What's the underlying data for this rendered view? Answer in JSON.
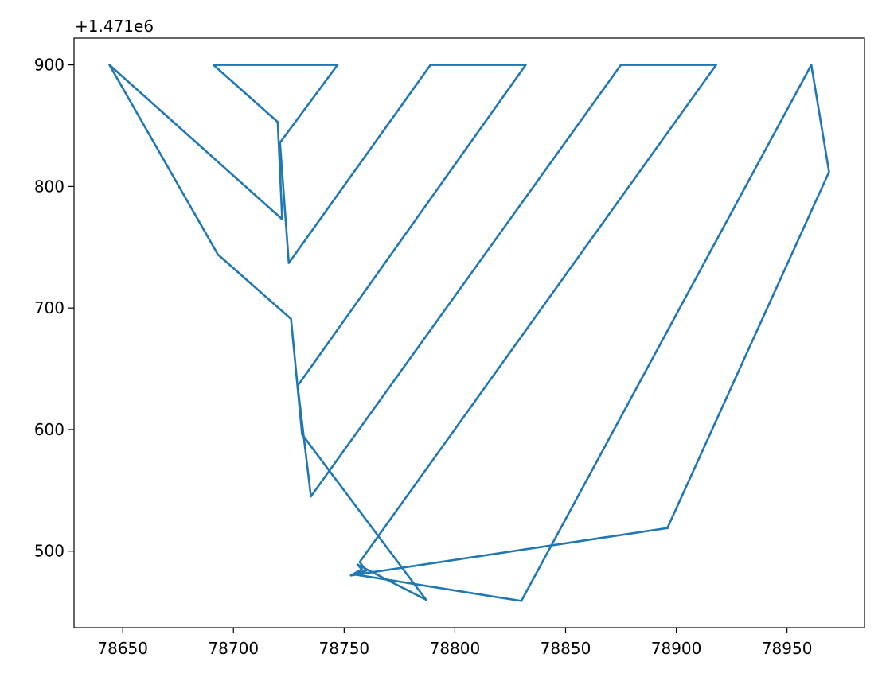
{
  "chart_data": {
    "type": "line",
    "title": "",
    "xlabel": "",
    "ylabel": "",
    "y_offset_text": "+1.471e6",
    "y_offset": 1471000,
    "xlim": [
      78628,
      78985
    ],
    "ylim": [
      437,
      922
    ],
    "x_ticks": [
      78650,
      78700,
      78750,
      78800,
      78850,
      78900,
      78950
    ],
    "x_tick_labels": [
      "78650",
      "78700",
      "78750",
      "78800",
      "78850",
      "78900",
      "78950"
    ],
    "y_ticks": [
      500,
      600,
      700,
      800,
      900
    ],
    "y_tick_labels": [
      "500",
      "600",
      "700",
      "800",
      "900"
    ],
    "grid": false,
    "series": [
      {
        "color": "#1f77b4",
        "x": [
          78896,
          78753,
          78758,
          78756,
          78787,
          78731,
          78726,
          78693,
          78644,
          78722,
          78720,
          78691,
          78747,
          78721,
          78725,
          78789,
          78832,
          78729,
          78735,
          78875,
          78918,
          78757,
          78760,
          78754,
          78830,
          78961,
          78969,
          78896
        ],
        "y": [
          519,
          480,
          485,
          489,
          460,
          596,
          691,
          744,
          900,
          773,
          853,
          900,
          900,
          836,
          737,
          900,
          900,
          636,
          545,
          900,
          900,
          491,
          484,
          481,
          459,
          900,
          812,
          519
        ]
      }
    ]
  }
}
